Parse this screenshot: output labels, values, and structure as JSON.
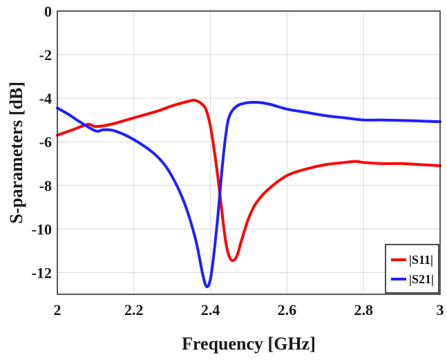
{
  "chart_data": {
    "type": "line",
    "title": "",
    "xlabel": "Frequency [GHz]",
    "ylabel": "S-parameters  [dB]",
    "xlim": [
      2,
      3
    ],
    "ylim": [
      -13,
      0
    ],
    "xticks": [
      2,
      2.2,
      2.4,
      2.6,
      2.8,
      3
    ],
    "yticks": [
      0,
      -2,
      -4,
      -6,
      -8,
      -10,
      -12
    ],
    "xtick_labels": [
      "2",
      "2.2",
      "2.4",
      "2.6",
      "2.8",
      "3"
    ],
    "ytick_labels": [
      "0",
      "-2",
      "-4",
      "-6",
      "-8",
      "-10",
      "-12"
    ],
    "grid": true,
    "legend_position": "bottom-right",
    "series": [
      {
        "name": "|S11|",
        "color": "#ff0000",
        "x": [
          2.0,
          2.04,
          2.08,
          2.1,
          2.14,
          2.2,
          2.26,
          2.3,
          2.34,
          2.36,
          2.38,
          2.39,
          2.4,
          2.41,
          2.42,
          2.43,
          2.44,
          2.45,
          2.46,
          2.47,
          2.48,
          2.5,
          2.52,
          2.55,
          2.6,
          2.65,
          2.7,
          2.75,
          2.78,
          2.8,
          2.85,
          2.9,
          2.95,
          3.0
        ],
        "y": [
          -5.7,
          -5.45,
          -5.2,
          -5.3,
          -5.2,
          -4.9,
          -4.6,
          -4.35,
          -4.15,
          -4.1,
          -4.3,
          -4.6,
          -5.3,
          -6.4,
          -7.7,
          -9.2,
          -10.6,
          -11.3,
          -11.45,
          -11.2,
          -10.6,
          -9.5,
          -8.8,
          -8.2,
          -7.55,
          -7.25,
          -7.05,
          -6.95,
          -6.9,
          -6.95,
          -7.0,
          -7.0,
          -7.05,
          -7.1
        ]
      },
      {
        "name": "|S21|",
        "color": "#1f1fff",
        "x": [
          2.0,
          2.03,
          2.06,
          2.1,
          2.12,
          2.15,
          2.2,
          2.25,
          2.28,
          2.3,
          2.32,
          2.34,
          2.36,
          2.37,
          2.38,
          2.39,
          2.4,
          2.41,
          2.42,
          2.43,
          2.44,
          2.45,
          2.47,
          2.5,
          2.53,
          2.56,
          2.6,
          2.65,
          2.7,
          2.75,
          2.8,
          2.85,
          2.9,
          2.95,
          3.0
        ],
        "y": [
          -4.45,
          -4.75,
          -5.1,
          -5.5,
          -5.45,
          -5.5,
          -5.9,
          -6.5,
          -7.05,
          -7.6,
          -8.3,
          -9.2,
          -10.4,
          -11.2,
          -12.1,
          -12.65,
          -12.3,
          -11.0,
          -9.3,
          -7.3,
          -5.7,
          -4.8,
          -4.35,
          -4.2,
          -4.2,
          -4.3,
          -4.5,
          -4.65,
          -4.8,
          -4.9,
          -5.0,
          -5.0,
          -5.02,
          -5.05,
          -5.08
        ]
      }
    ]
  }
}
